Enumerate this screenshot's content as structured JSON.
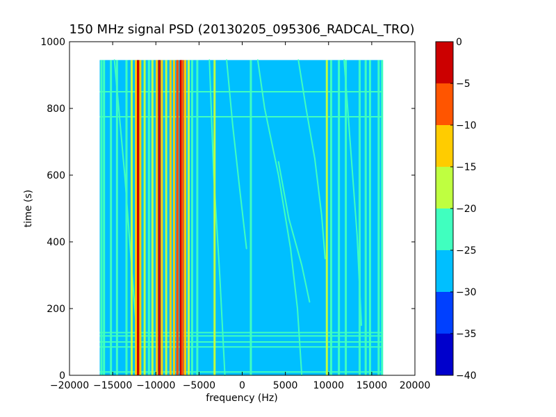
{
  "chart_data": {
    "type": "heatmap",
    "title": "150 MHz signal PSD (20130205_095306_RADCAL_TRO)",
    "xlabel": "frequency (Hz)",
    "ylabel": "time (s)",
    "xlim": [
      -20000,
      20000
    ],
    "ylim": [
      0,
      1000
    ],
    "x_ticks": [
      -20000,
      -15000,
      -10000,
      -5000,
      0,
      5000,
      10000,
      15000,
      20000
    ],
    "x_tick_labels": [
      "−20000",
      "−15000",
      "−10000",
      "−5000",
      "0",
      "5000",
      "10000",
      "15000",
      "20000"
    ],
    "y_ticks": [
      0,
      200,
      400,
      600,
      800,
      1000
    ],
    "y_tick_labels": [
      "0",
      "200",
      "400",
      "600",
      "800",
      "1000"
    ],
    "data_extent": {
      "x": [
        -16500,
        16300
      ],
      "y": [
        0,
        945
      ]
    },
    "background_level": -27.5,
    "vertical_lines": [
      {
        "x": -16300,
        "level": -22.5
      },
      {
        "x": -16000,
        "level": -22.5
      },
      {
        "x": -15200,
        "level": -22.5
      },
      {
        "x": -14500,
        "level": -22.5
      },
      {
        "x": -13400,
        "level": -22.5
      },
      {
        "x": -12800,
        "level": -17.5
      },
      {
        "x": -12300,
        "level": -12.5
      },
      {
        "x": -12050,
        "level": -2.5
      },
      {
        "x": -11800,
        "level": -12.5
      },
      {
        "x": -11300,
        "level": -17.5
      },
      {
        "x": -10800,
        "level": -22.5
      },
      {
        "x": -10400,
        "level": -17.5
      },
      {
        "x": -9900,
        "level": -12.5
      },
      {
        "x": -9600,
        "level": -2.5
      },
      {
        "x": -9300,
        "level": -12.5
      },
      {
        "x": -8800,
        "level": -17.5
      },
      {
        "x": -8300,
        "level": -12.5
      },
      {
        "x": -7900,
        "level": -12.5
      },
      {
        "x": -7500,
        "level": -7.5
      },
      {
        "x": -7100,
        "level": -2.5
      },
      {
        "x": -6900,
        "level": -7.5
      },
      {
        "x": -6600,
        "level": -12.5
      },
      {
        "x": -6200,
        "level": -17.5
      },
      {
        "x": -5800,
        "level": -22.5
      },
      {
        "x": -5200,
        "level": -22.5
      },
      {
        "x": -3200,
        "level": -17.5
      },
      {
        "x": 1000,
        "level": -22.5
      },
      {
        "x": 9800,
        "level": -17.5
      },
      {
        "x": 10300,
        "level": -22.5
      },
      {
        "x": 11200,
        "level": -22.5
      },
      {
        "x": 12000,
        "level": -22.5
      },
      {
        "x": 13600,
        "level": -22.5
      },
      {
        "x": 14300,
        "level": -22.5
      },
      {
        "x": 14800,
        "level": -22.5
      },
      {
        "x": 15800,
        "level": -22.5
      },
      {
        "x": 16200,
        "level": -22.5
      }
    ],
    "horizontal_lines": [
      {
        "y": 10,
        "level": -22.5
      },
      {
        "y": 85,
        "level": -22.5
      },
      {
        "y": 100,
        "level": -22.5
      },
      {
        "y": 118,
        "level": -22.5
      },
      {
        "y": 128,
        "level": -22.5
      },
      {
        "y": 775,
        "level": -22.5
      },
      {
        "y": 850,
        "level": -22.5
      }
    ],
    "drift_traces": [
      {
        "points": [
          [
            -14800,
            945
          ],
          [
            -13600,
            600
          ],
          [
            -12500,
            220
          ],
          [
            -11800,
            0
          ]
        ],
        "level": -22.5
      },
      {
        "points": [
          [
            -3800,
            945
          ],
          [
            -3300,
            600
          ],
          [
            -2600,
            300
          ],
          [
            -2000,
            0
          ]
        ],
        "level": -22.5
      },
      {
        "points": [
          [
            -1800,
            945
          ],
          [
            -1100,
            750
          ],
          [
            -300,
            560
          ],
          [
            500,
            380
          ]
        ],
        "level": -22.5
      },
      {
        "points": [
          [
            1800,
            945
          ],
          [
            2600,
            800
          ],
          [
            4200,
            600
          ],
          [
            5600,
            380
          ],
          [
            6400,
            200
          ],
          [
            6900,
            0
          ]
        ],
        "level": -22.5
      },
      {
        "points": [
          [
            4200,
            640
          ],
          [
            5400,
            470
          ],
          [
            6900,
            330
          ],
          [
            7800,
            220
          ]
        ],
        "level": -22.5
      },
      {
        "points": [
          [
            6500,
            945
          ],
          [
            7400,
            800
          ],
          [
            8400,
            650
          ],
          [
            9200,
            480
          ],
          [
            9600,
            350
          ]
        ],
        "level": -22.5
      },
      {
        "points": [
          [
            11800,
            945
          ],
          [
            12500,
            700
          ],
          [
            13300,
            420
          ],
          [
            13800,
            150
          ]
        ],
        "level": -22.5
      }
    ],
    "colorbar": {
      "levels": [
        -40,
        -35,
        -30,
        -25,
        -20,
        -15,
        -10,
        -5,
        0
      ],
      "tick_labels": [
        "0",
        "−5",
        "−10",
        "−15",
        "−20",
        "−25",
        "−30",
        "−35",
        "−40"
      ],
      "colors": [
        "#0000cc",
        "#0040ff",
        "#00bfff",
        "#40ffbf",
        "#bfff40",
        "#ffcc00",
        "#ff5500",
        "#cc0000"
      ]
    }
  }
}
